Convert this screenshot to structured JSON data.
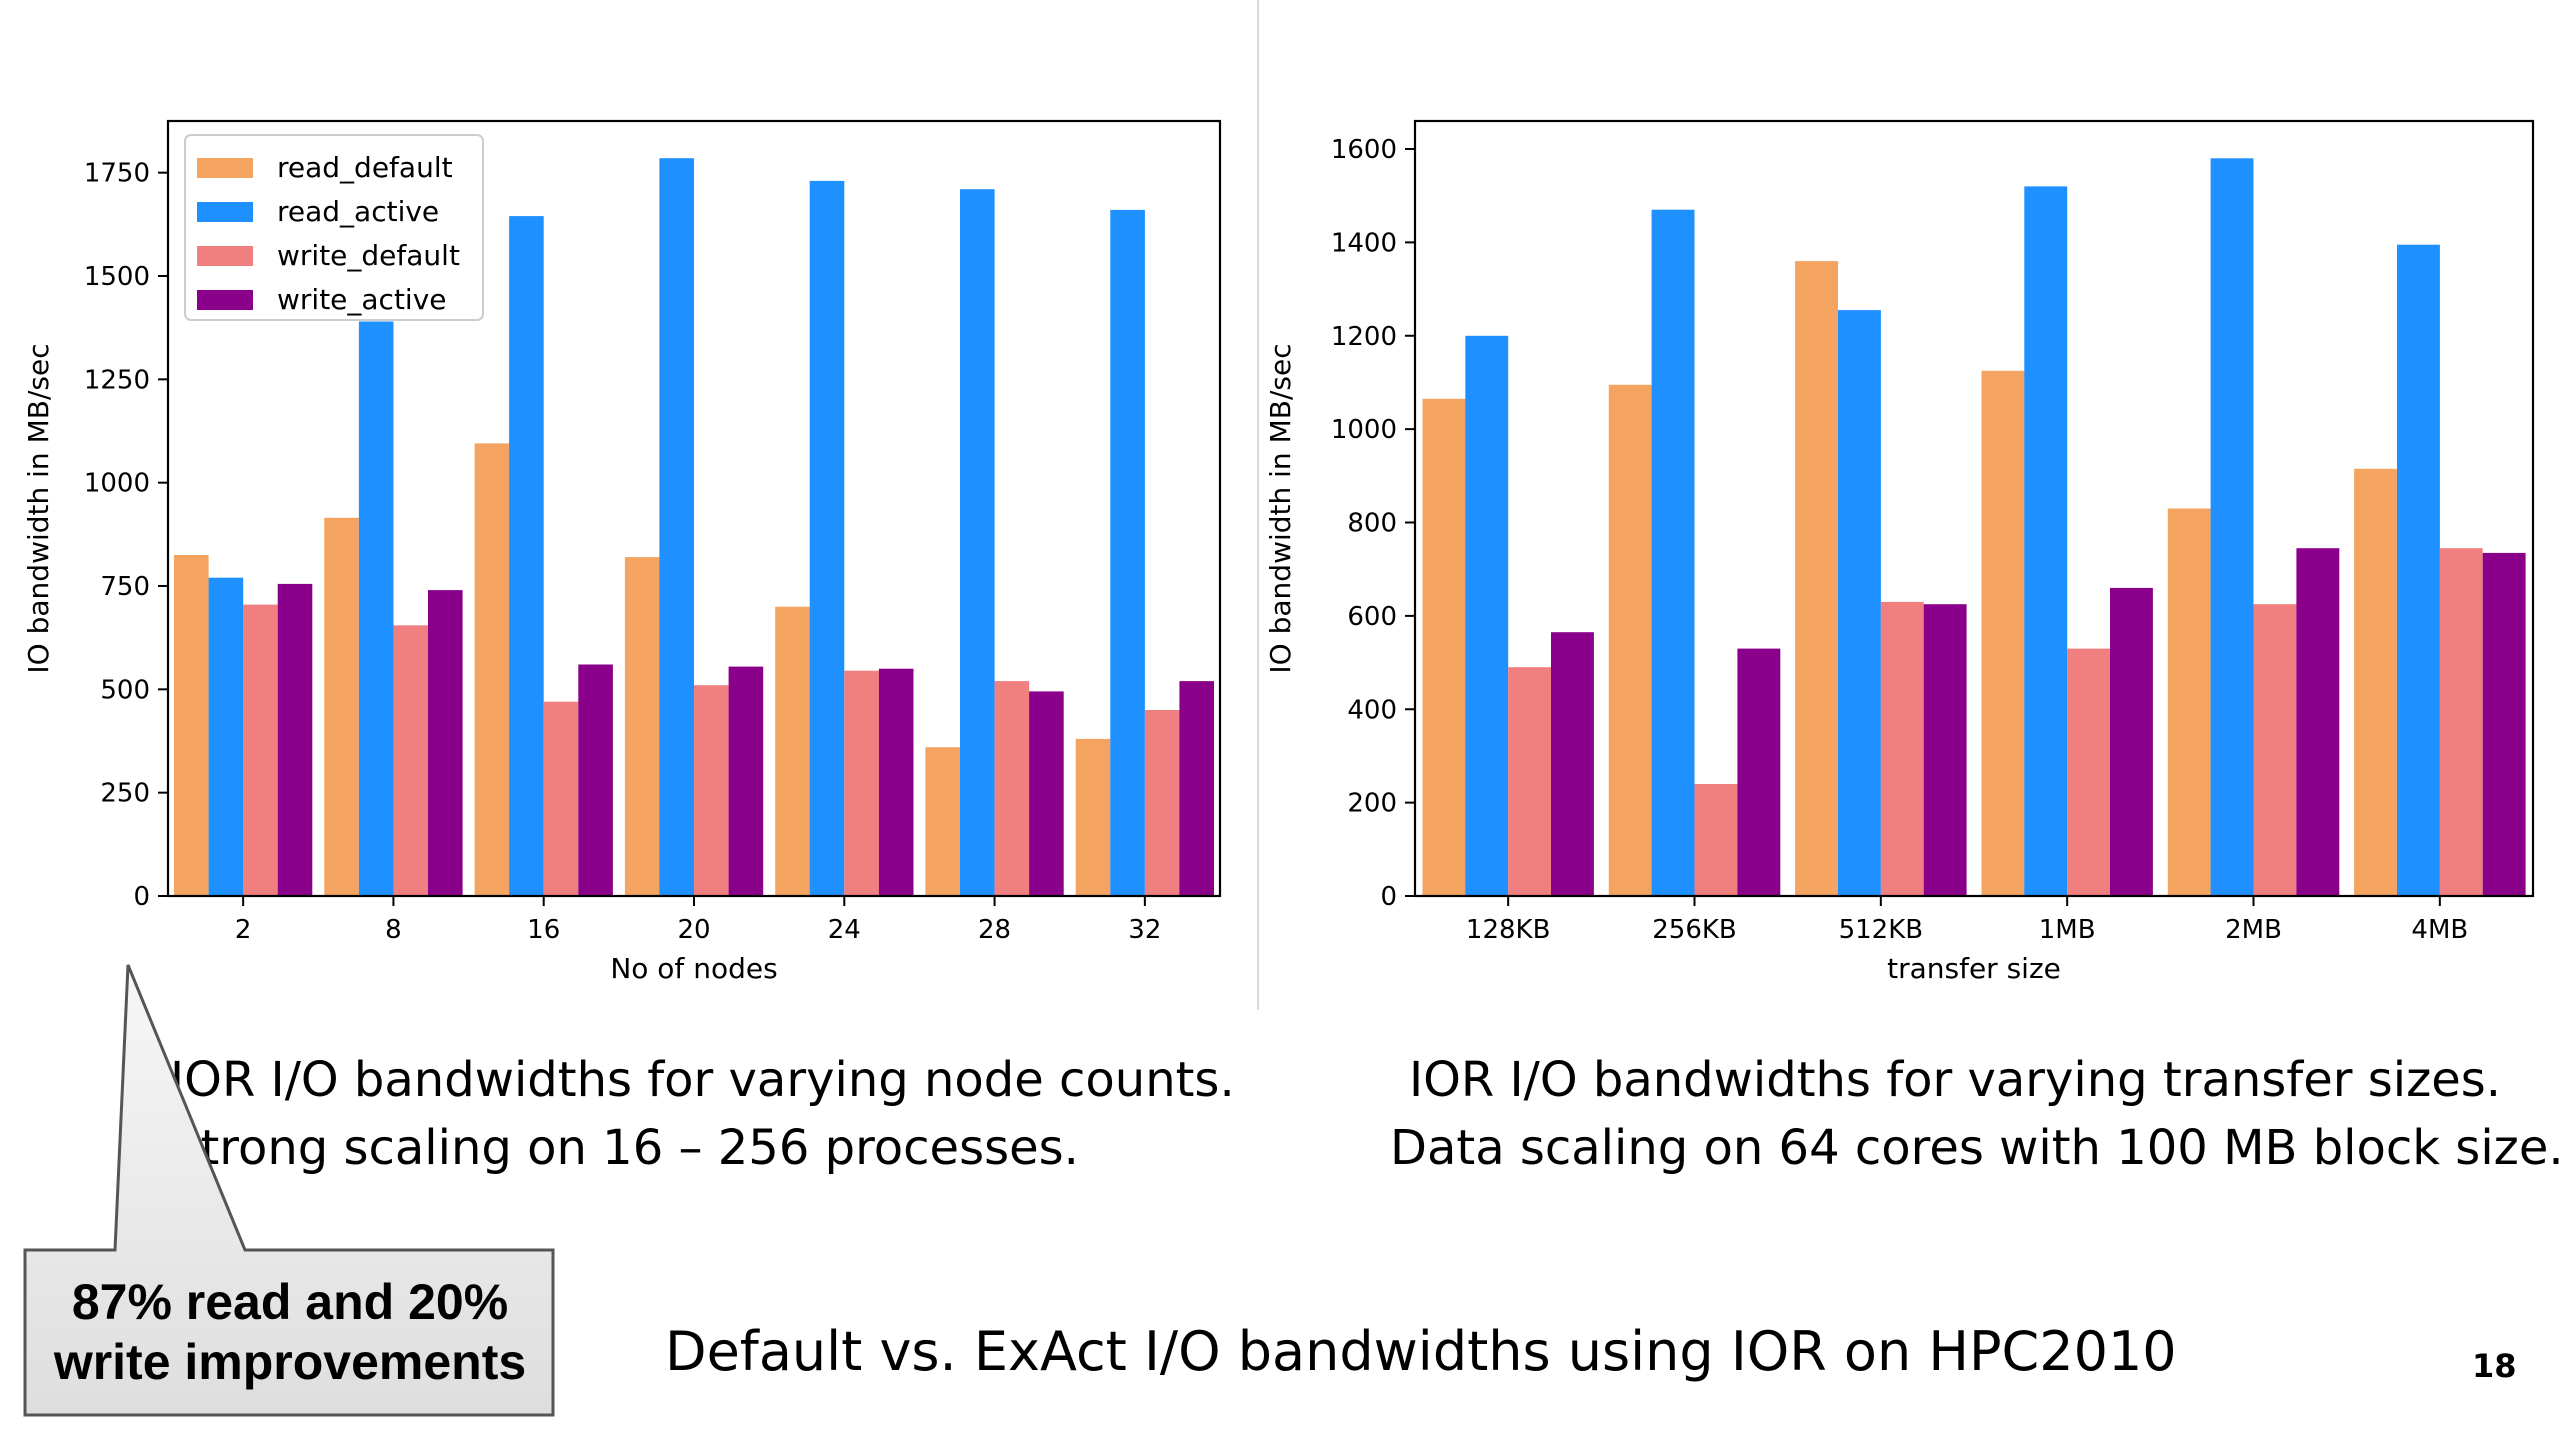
{
  "colors": {
    "read_default": "#f4a460",
    "read_active": "#1e90ff",
    "write_default": "#f08080",
    "write_active": "#8b008b"
  },
  "chart_data": [
    {
      "type": "bar",
      "categories": [
        "2",
        "8",
        "16",
        "20",
        "24",
        "28",
        "32"
      ],
      "xlabel": "No of nodes",
      "ylabel": "IO bandwidth in MB/sec",
      "ylim": [
        0,
        1875
      ],
      "yticks": [
        0,
        250,
        500,
        750,
        1000,
        1250,
        1500,
        1750
      ],
      "legend": "top-left",
      "grid": false,
      "series": [
        {
          "name": "read_default",
          "key": "read_default",
          "values": [
            825,
            915,
            1095,
            820,
            700,
            360,
            380
          ]
        },
        {
          "name": "read_active",
          "key": "read_active",
          "values": [
            770,
            1390,
            1645,
            1785,
            1730,
            1710,
            1660
          ]
        },
        {
          "name": "write_default",
          "key": "write_default",
          "values": [
            705,
            655,
            470,
            510,
            545,
            520,
            450
          ]
        },
        {
          "name": "write_active",
          "key": "write_active",
          "values": [
            755,
            740,
            560,
            555,
            550,
            495,
            520
          ]
        }
      ]
    },
    {
      "type": "bar",
      "categories": [
        "128KB",
        "256KB",
        "512KB",
        "1MB",
        "2MB",
        "4MB"
      ],
      "xlabel": "transfer size",
      "ylabel": "IO bandwidth in MB/sec",
      "ylim": [
        0,
        1660
      ],
      "yticks": [
        0,
        200,
        400,
        600,
        800,
        1000,
        1200,
        1400,
        1600
      ],
      "grid": false,
      "series": [
        {
          "key": "read_default",
          "values": [
            1065,
            1095,
            1360,
            1125,
            830,
            915
          ]
        },
        {
          "key": "read_active",
          "values": [
            1200,
            1470,
            1255,
            1520,
            1580,
            1395
          ]
        },
        {
          "key": "write_default",
          "values": [
            490,
            240,
            630,
            530,
            625,
            745
          ]
        },
        {
          "key": "write_active",
          "values": [
            565,
            530,
            625,
            660,
            745,
            735
          ]
        }
      ]
    }
  ],
  "captions": {
    "left_line1": "IOR I/O bandwidths for varying node counts.",
    "left_line2": "Strong scaling on 16 – 256 processes.",
    "right_line1": "IOR I/O bandwidths for varying transfer sizes.",
    "right_line2": "Data scaling on 64 cores with 100 MB block size."
  },
  "callout": {
    "line1": "87% read and 20%",
    "line2": "write improvements"
  },
  "slide_title": "Default vs. ExAct I/O bandwidths using IOR on HPC2010",
  "page_number": "18"
}
